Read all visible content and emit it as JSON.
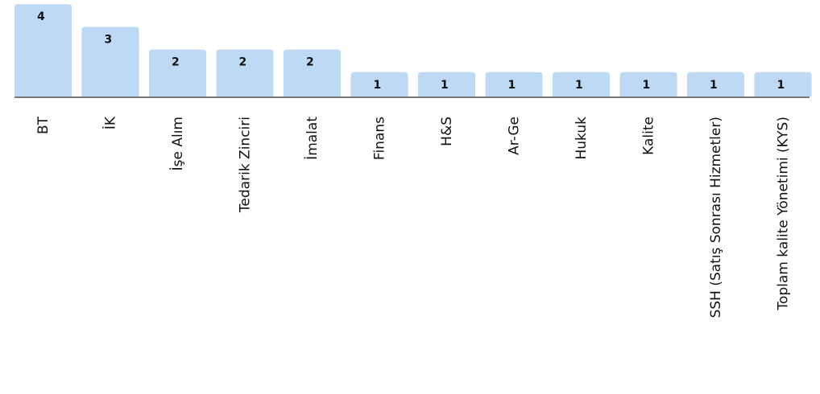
{
  "chart_data": {
    "type": "bar",
    "categories": [
      "BT",
      "İK",
      "İşe Alım",
      "Tedarik Zinciri",
      "İmalat",
      "Finans",
      "H&S",
      "Ar-Ge",
      "Hukuk",
      "Kalite",
      "SSH (Satış Sonrası Hizmetler)",
      "Toplam kalite Yönetimi (KYS)"
    ],
    "values": [
      4,
      3,
      2,
      2,
      2,
      1,
      1,
      1,
      1,
      1,
      1,
      1
    ],
    "ylim": [
      0,
      4
    ],
    "bar_color": "#bdd9f4",
    "grid": false,
    "data_labels": true
  }
}
